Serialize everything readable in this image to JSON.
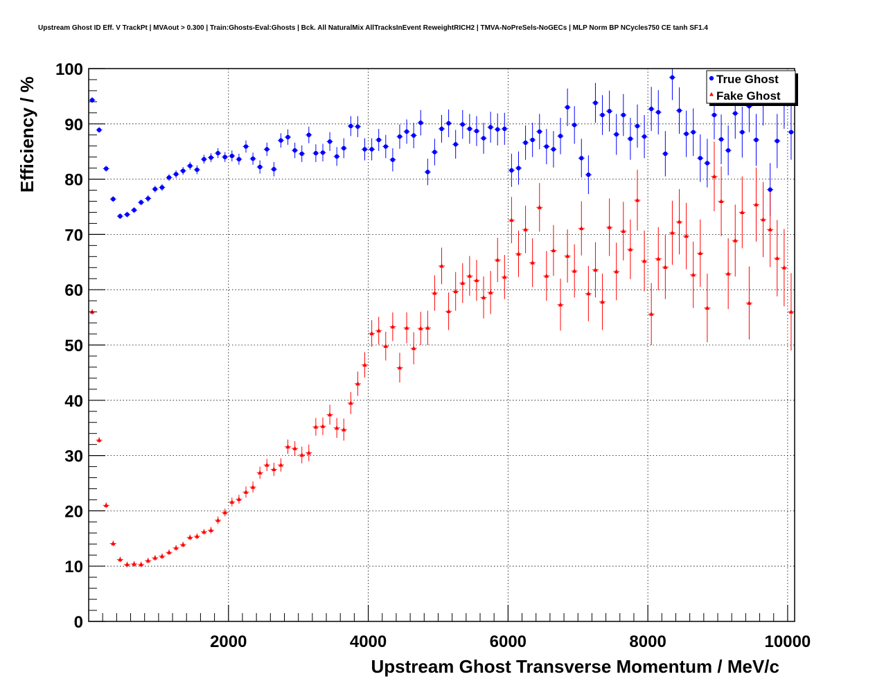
{
  "chart_data": {
    "type": "scatter",
    "title": "Upstream Ghost ID Eff. V TrackPt | MVAout > 0.300 | Train:Ghosts-Eval:Ghosts | Bck. All NaturalMix AllTracksInEvent ReweightRICH2 | TMVA-NoPreSels-NoGECs | MLP Norm BP NCycles750 CE tanh SF1.4",
    "xlabel": "Upstream Ghost Transverse Momentum / MeV/c",
    "ylabel": "Efficiency / %",
    "xlim": [
      0,
      10100
    ],
    "ylim": [
      0,
      100
    ],
    "xticks": [
      "2000",
      "4000",
      "6000",
      "8000",
      "10000"
    ],
    "yticks": [
      "0",
      "10",
      "20",
      "30",
      "40",
      "50",
      "60",
      "70",
      "80",
      "90",
      "100"
    ],
    "grid": true,
    "legend_position": "top-right",
    "series": [
      {
        "name": "True Ghost",
        "color": "#0000ff",
        "marker": "circle",
        "x": [
          50,
          150,
          250,
          350,
          450,
          550,
          650,
          750,
          850,
          950,
          1050,
          1150,
          1250,
          1350,
          1450,
          1550,
          1650,
          1750,
          1850,
          1950,
          2050,
          2150,
          2250,
          2350,
          2450,
          2550,
          2650,
          2750,
          2850,
          2950,
          3050,
          3150,
          3250,
          3350,
          3450,
          3550,
          3650,
          3750,
          3850,
          3950,
          4050,
          4150,
          4250,
          4350,
          4450,
          4550,
          4650,
          4750,
          4850,
          4950,
          5050,
          5150,
          5250,
          5350,
          5450,
          5550,
          5650,
          5750,
          5850,
          5950,
          6050,
          6150,
          6250,
          6350,
          6450,
          6550,
          6650,
          6750,
          6850,
          6950,
          7050,
          7150,
          7250,
          7350,
          7450,
          7550,
          7650,
          7750,
          7850,
          7950,
          8050,
          8150,
          8250,
          8350,
          8450,
          8550,
          8650,
          8750,
          8850,
          8950,
          9050,
          9150,
          9250,
          9350,
          9450,
          9550,
          9650,
          9750,
          9850,
          9950,
          10050
        ],
        "y": [
          94.3,
          88.9,
          81.9,
          76.4,
          73.3,
          73.6,
          74.4,
          75.8,
          76.5,
          78.2,
          78.5,
          80.3,
          80.9,
          81.5,
          82.4,
          81.7,
          83.6,
          83.9,
          84.7,
          84.0,
          84.2,
          83.6,
          85.9,
          83.7,
          82.2,
          85.4,
          81.8,
          87.0,
          87.6,
          85.2,
          84.6,
          88.0,
          84.7,
          84.8,
          86.8,
          84.1,
          85.6,
          89.6,
          89.5,
          85.4,
          85.4,
          87.1,
          85.9,
          83.5,
          87.7,
          88.6,
          87.9,
          90.2,
          81.3,
          84.9,
          89.1,
          90.1,
          86.3,
          89.9,
          89.1,
          88.7,
          87.4,
          89.4,
          89.0,
          89.1,
          81.6,
          82.0,
          86.6,
          87.1,
          88.6,
          85.9,
          85.4,
          87.8,
          93.0,
          89.8,
          83.8,
          80.8,
          93.8,
          91.6,
          92.3,
          88.1,
          91.6,
          87.3,
          89.6,
          87.7,
          92.7,
          92.1,
          84.6,
          98.4,
          92.4,
          88.2,
          88.5,
          83.8,
          82.9,
          91.6,
          87.2,
          85.2,
          91.9,
          88.5,
          93.2,
          87.1,
          94.5,
          78.1,
          86.9,
          94.0,
          88.5
        ],
        "err": [
          0.5,
          0.5,
          0.5,
          0.5,
          0.5,
          0.5,
          0.5,
          0.5,
          0.6,
          0.6,
          0.6,
          0.6,
          0.7,
          0.7,
          0.7,
          0.8,
          0.8,
          0.8,
          0.9,
          0.9,
          1.0,
          1.0,
          1.1,
          1.1,
          1.2,
          1.2,
          1.3,
          1.3,
          1.4,
          1.4,
          1.5,
          1.5,
          1.6,
          1.6,
          1.7,
          1.7,
          1.8,
          1.8,
          1.9,
          2.0,
          2.0,
          2.0,
          2.1,
          2.1,
          2.2,
          2.2,
          2.3,
          2.3,
          2.4,
          2.4,
          2.5,
          2.5,
          2.6,
          2.6,
          2.7,
          2.7,
          2.8,
          2.8,
          2.9,
          2.9,
          3.0,
          3.0,
          3.1,
          3.1,
          3.2,
          3.2,
          3.3,
          3.3,
          3.4,
          3.4,
          3.5,
          3.5,
          3.6,
          3.6,
          3.7,
          3.7,
          3.8,
          3.8,
          3.9,
          3.9,
          4.0,
          4.0,
          4.1,
          4.1,
          4.2,
          4.2,
          4.3,
          4.3,
          4.4,
          4.4,
          4.5,
          4.5,
          4.6,
          4.6,
          4.7,
          4.7,
          4.8,
          4.8,
          4.9,
          4.9,
          5.0
        ]
      },
      {
        "name": "Fake Ghost",
        "color": "#ff0000",
        "marker": "triangle",
        "x": [
          50,
          150,
          250,
          350,
          450,
          550,
          650,
          750,
          850,
          950,
          1050,
          1150,
          1250,
          1350,
          1450,
          1550,
          1650,
          1750,
          1850,
          1950,
          2050,
          2150,
          2250,
          2350,
          2450,
          2550,
          2650,
          2750,
          2850,
          2950,
          3050,
          3150,
          3250,
          3350,
          3450,
          3550,
          3650,
          3750,
          3850,
          3950,
          4050,
          4150,
          4250,
          4350,
          4450,
          4550,
          4650,
          4750,
          4850,
          4950,
          5050,
          5150,
          5250,
          5350,
          5450,
          5550,
          5650,
          5750,
          5850,
          5950,
          6050,
          6150,
          6250,
          6350,
          6450,
          6550,
          6650,
          6750,
          6850,
          6950,
          7050,
          7150,
          7250,
          7350,
          7450,
          7550,
          7650,
          7750,
          7850,
          7950,
          8050,
          8150,
          8250,
          8350,
          8450,
          8550,
          8650,
          8750,
          8850,
          8950,
          9050,
          9150,
          9250,
          9350,
          9450,
          9550,
          9650,
          9750,
          9850,
          9950,
          10050
        ],
        "y": [
          56.0,
          32.8,
          21.0,
          14.1,
          11.2,
          10.3,
          10.4,
          10.3,
          11.0,
          11.5,
          11.8,
          12.5,
          13.3,
          13.9,
          15.2,
          15.4,
          16.2,
          16.5,
          18.3,
          19.7,
          21.6,
          22.1,
          23.4,
          24.3,
          26.9,
          28.3,
          27.5,
          28.3,
          31.6,
          31.3,
          30.1,
          30.5,
          35.2,
          35.3,
          37.4,
          35.0,
          34.7,
          39.5,
          43.0,
          46.4,
          52.1,
          52.6,
          49.8,
          53.3,
          45.9,
          53.1,
          49.4,
          53.0,
          53.1,
          59.4,
          64.3,
          56.1,
          59.7,
          61.2,
          62.5,
          61.7,
          58.6,
          59.5,
          65.4,
          62.3,
          72.6,
          66.5,
          70.9,
          64.9,
          74.9,
          62.5,
          67.1,
          57.3,
          66.1,
          63.4,
          71.1,
          59.3,
          63.6,
          57.8,
          71.3,
          63.3,
          70.6,
          67.3,
          76.2,
          65.2,
          55.6,
          65.6,
          64.1,
          70.3,
          72.3,
          69.7,
          62.7,
          66.6,
          56.7,
          80.5,
          76.0,
          62.9,
          68.9,
          74.0,
          57.6,
          75.4,
          72.7,
          70.9,
          65.7,
          64.0,
          56.0
        ],
        "err": [
          0.5,
          0.5,
          0.5,
          0.5,
          0.5,
          0.5,
          0.5,
          0.5,
          0.5,
          0.5,
          0.5,
          0.5,
          0.5,
          0.5,
          0.5,
          0.5,
          0.5,
          0.6,
          0.7,
          0.7,
          0.8,
          0.8,
          1.0,
          1.0,
          1.1,
          1.1,
          1.2,
          1.2,
          1.3,
          1.3,
          1.5,
          1.5,
          1.6,
          1.6,
          1.8,
          1.8,
          2.0,
          2.0,
          2.2,
          2.3,
          2.4,
          2.5,
          2.6,
          2.6,
          2.7,
          2.8,
          2.9,
          3.0,
          3.1,
          3.2,
          3.3,
          3.4,
          3.5,
          3.6,
          3.6,
          3.7,
          3.8,
          3.9,
          4.0,
          4.0,
          4.2,
          4.2,
          4.3,
          4.4,
          4.4,
          4.5,
          4.6,
          4.7,
          4.8,
          4.8,
          4.9,
          5.0,
          5.0,
          5.1,
          5.2,
          5.2,
          5.3,
          5.4,
          5.5,
          5.5,
          5.6,
          5.7,
          5.8,
          5.8,
          5.9,
          6.0,
          6.0,
          6.1,
          6.2,
          6.3,
          6.3,
          6.4,
          6.5,
          6.5,
          6.6,
          6.7,
          6.8,
          6.8,
          6.9,
          7.0,
          7.0
        ]
      }
    ]
  }
}
